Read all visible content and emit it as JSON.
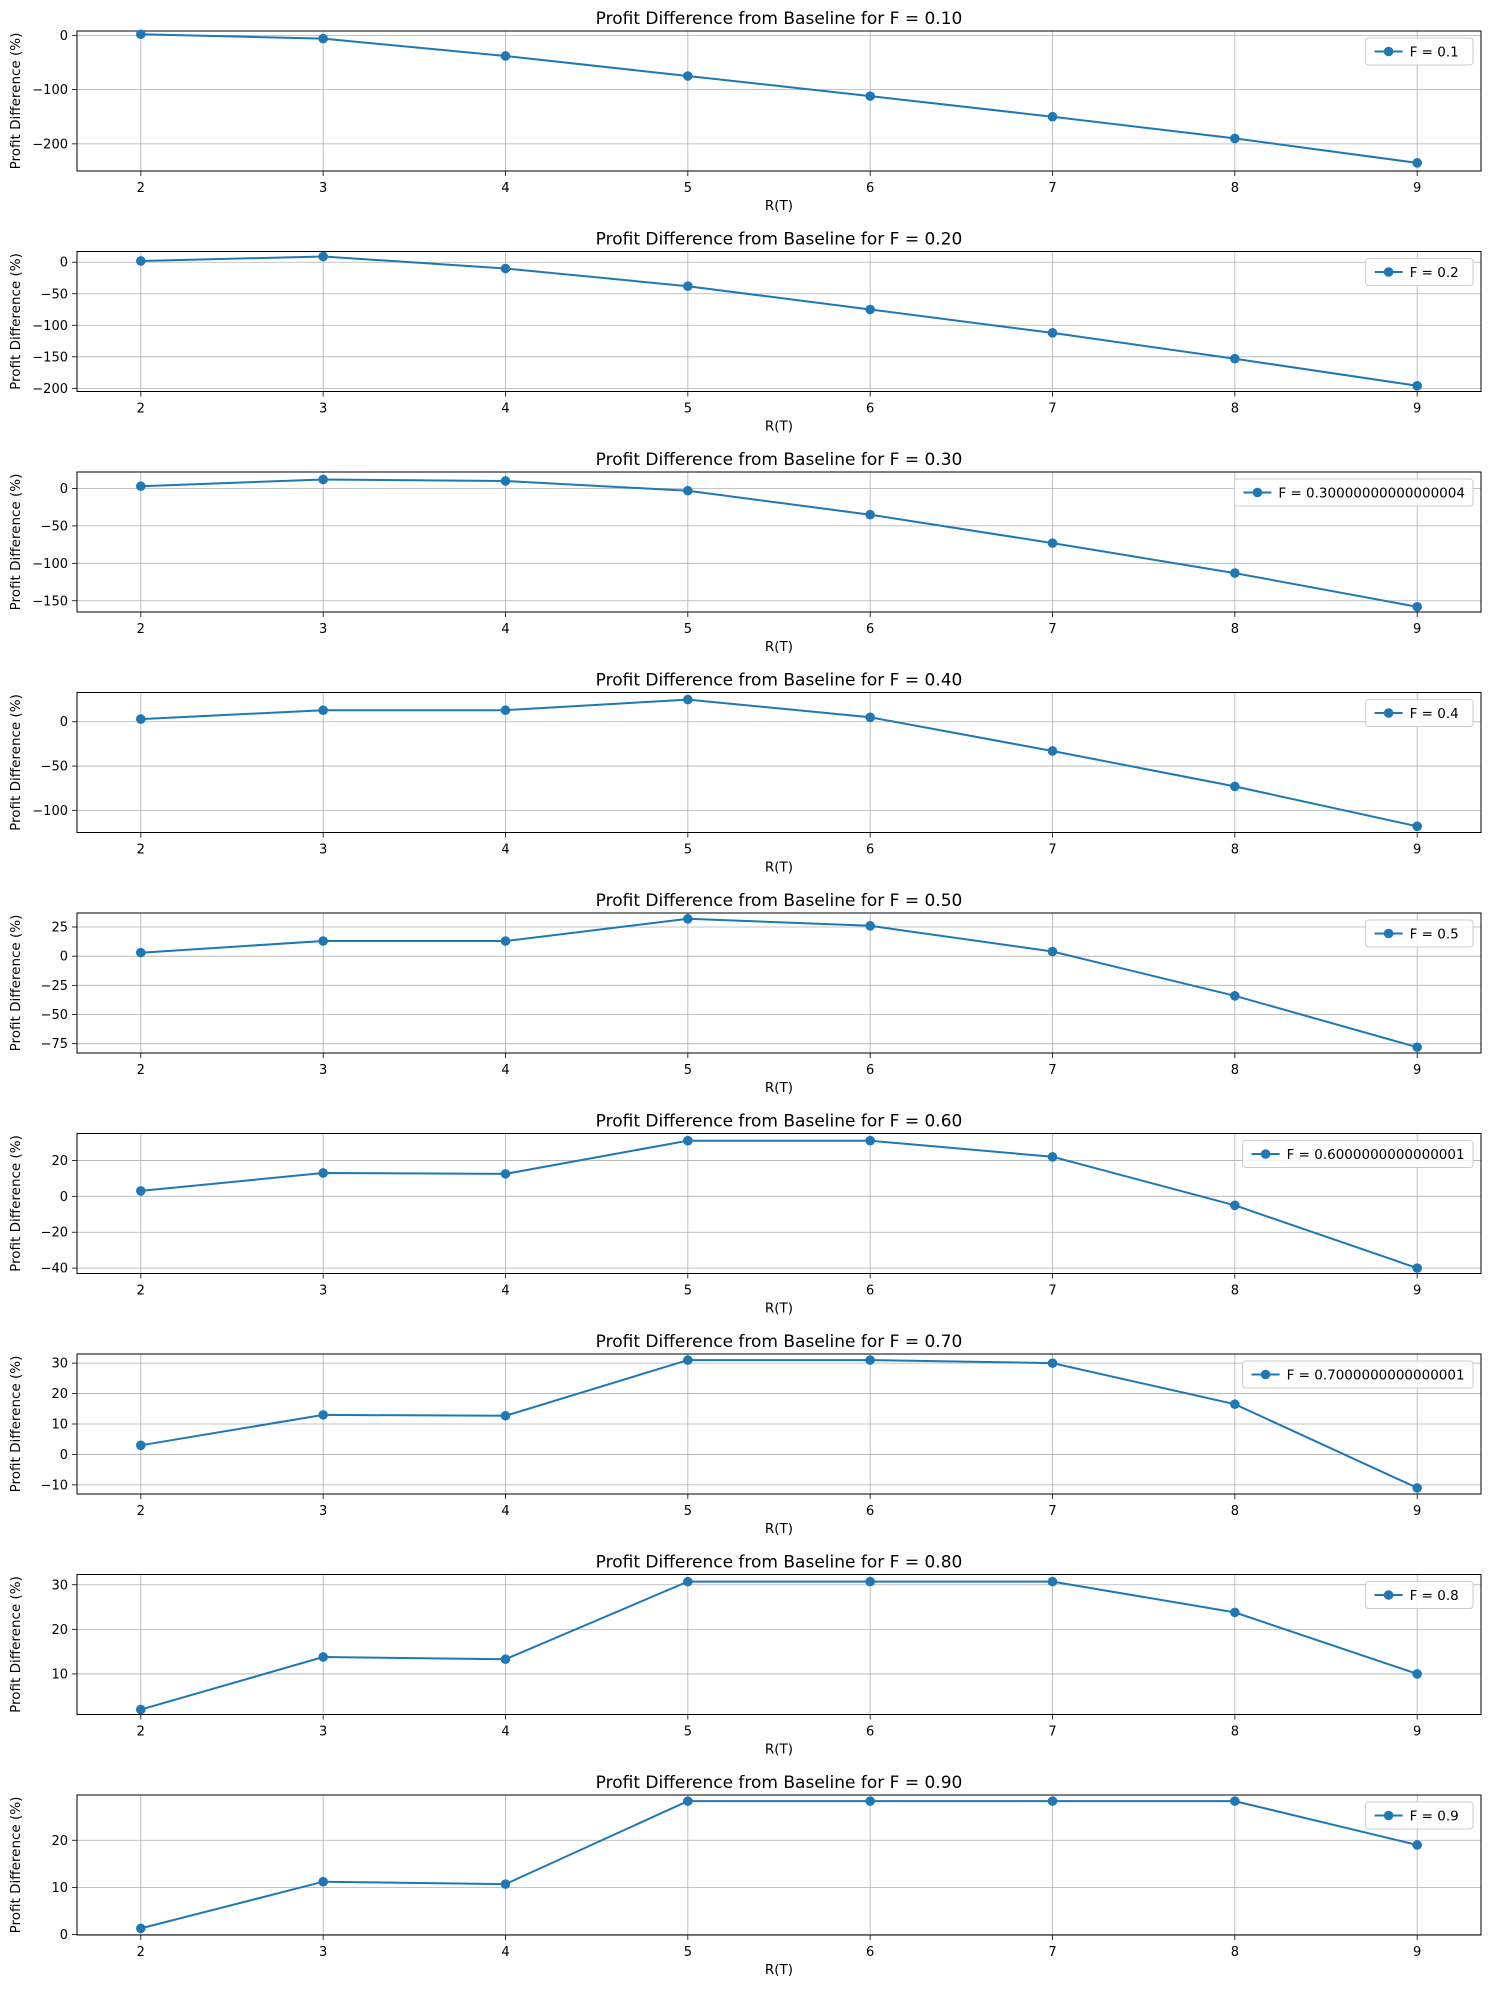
{
  "chart_data": [
    {
      "type": "line",
      "title": "Profit Difference from Baseline for F = 0.10",
      "xlabel": "R(T)",
      "ylabel": "Profit Difference (%)",
      "x": [
        2,
        3,
        4,
        5,
        6,
        7,
        8,
        9
      ],
      "xticks": [
        "2",
        "3",
        "4",
        "5",
        "6",
        "7",
        "8",
        "9"
      ],
      "ylim": [
        -250,
        8
      ],
      "yticks": [
        0,
        -100,
        -200
      ],
      "ytick_labels": [
        "0",
        "−100",
        "−200"
      ],
      "grid": true,
      "legend_position": "upper right",
      "series": [
        {
          "name": "F = 0.1",
          "color": "#1f77b4",
          "values": [
            2,
            -6,
            -38,
            -75,
            -112,
            -150,
            -190,
            -235
          ]
        }
      ]
    },
    {
      "type": "line",
      "title": "Profit Difference from Baseline for F = 0.20",
      "xlabel": "R(T)",
      "ylabel": "Profit Difference (%)",
      "x": [
        2,
        3,
        4,
        5,
        6,
        7,
        8,
        9
      ],
      "xticks": [
        "2",
        "3",
        "4",
        "5",
        "6",
        "7",
        "8",
        "9"
      ],
      "ylim": [
        -205,
        17
      ],
      "yticks": [
        0,
        -50,
        -100,
        -150,
        -200
      ],
      "ytick_labels": [
        "0",
        "−50",
        "−100",
        "−150",
        "−200"
      ],
      "grid": true,
      "legend_position": "upper right",
      "series": [
        {
          "name": "F = 0.2",
          "color": "#1f77b4",
          "values": [
            2,
            9,
            -10,
            -38,
            -75,
            -112,
            -153,
            -196
          ]
        }
      ]
    },
    {
      "type": "line",
      "title": "Profit Difference from Baseline for F = 0.30",
      "xlabel": "R(T)",
      "ylabel": "Profit Difference (%)",
      "x": [
        2,
        3,
        4,
        5,
        6,
        7,
        8,
        9
      ],
      "xticks": [
        "2",
        "3",
        "4",
        "5",
        "6",
        "7",
        "8",
        "9"
      ],
      "ylim": [
        -165,
        22
      ],
      "yticks": [
        0,
        -50,
        -100,
        -150
      ],
      "ytick_labels": [
        "0",
        "−50",
        "−100",
        "−150"
      ],
      "grid": true,
      "legend_position": "upper right",
      "series": [
        {
          "name": "F = 0.30000000000000004",
          "color": "#1f77b4",
          "values": [
            3,
            12,
            10,
            -3,
            -35,
            -73,
            -113,
            -158
          ]
        }
      ]
    },
    {
      "type": "line",
      "title": "Profit Difference from Baseline for F = 0.40",
      "xlabel": "R(T)",
      "ylabel": "Profit Difference (%)",
      "x": [
        2,
        3,
        4,
        5,
        6,
        7,
        8,
        9
      ],
      "xticks": [
        "2",
        "3",
        "4",
        "5",
        "6",
        "7",
        "8",
        "9"
      ],
      "ylim": [
        -125,
        33
      ],
      "yticks": [
        0,
        -50,
        -100
      ],
      "ytick_labels": [
        "0",
        "−50",
        "−100"
      ],
      "grid": true,
      "legend_position": "upper right",
      "series": [
        {
          "name": "F = 0.4",
          "color": "#1f77b4",
          "values": [
            3,
            13,
            13,
            25,
            5,
            -33,
            -73,
            -118
          ]
        }
      ]
    },
    {
      "type": "line",
      "title": "Profit Difference from Baseline for F = 0.50",
      "xlabel": "R(T)",
      "ylabel": "Profit Difference (%)",
      "x": [
        2,
        3,
        4,
        5,
        6,
        7,
        8,
        9
      ],
      "xticks": [
        "2",
        "3",
        "4",
        "5",
        "6",
        "7",
        "8",
        "9"
      ],
      "ylim": [
        -83,
        37
      ],
      "yticks": [
        25,
        0,
        -25,
        -50,
        -75
      ],
      "ytick_labels": [
        "25",
        "0",
        "−25",
        "−50",
        "−75"
      ],
      "grid": true,
      "legend_position": "upper right",
      "series": [
        {
          "name": "F = 0.5",
          "color": "#1f77b4",
          "values": [
            3,
            13,
            13,
            32,
            26,
            4,
            -34,
            -78
          ]
        }
      ]
    },
    {
      "type": "line",
      "title": "Profit Difference from Baseline for F = 0.60",
      "xlabel": "R(T)",
      "ylabel": "Profit Difference (%)",
      "x": [
        2,
        3,
        4,
        5,
        6,
        7,
        8,
        9
      ],
      "xticks": [
        "2",
        "3",
        "4",
        "5",
        "6",
        "7",
        "8",
        "9"
      ],
      "ylim": [
        -43,
        35
      ],
      "yticks": [
        20,
        0,
        -20,
        -40
      ],
      "ytick_labels": [
        "20",
        "0",
        "−20",
        "−40"
      ],
      "grid": true,
      "legend_position": "upper right",
      "series": [
        {
          "name": "F = 0.6000000000000001",
          "color": "#1f77b4",
          "values": [
            3,
            13,
            12.5,
            31,
            31,
            22,
            -5,
            -40
          ]
        }
      ]
    },
    {
      "type": "line",
      "title": "Profit Difference from Baseline for F = 0.70",
      "xlabel": "R(T)",
      "ylabel": "Profit Difference (%)",
      "x": [
        2,
        3,
        4,
        5,
        6,
        7,
        8,
        9
      ],
      "xticks": [
        "2",
        "3",
        "4",
        "5",
        "6",
        "7",
        "8",
        "9"
      ],
      "ylim": [
        -13,
        33
      ],
      "yticks": [
        30,
        20,
        10,
        0,
        -10
      ],
      "ytick_labels": [
        "30",
        "20",
        "10",
        "0",
        "−10"
      ],
      "grid": true,
      "legend_position": "upper right",
      "series": [
        {
          "name": "F = 0.7000000000000001",
          "color": "#1f77b4",
          "values": [
            3,
            13,
            12.7,
            31,
            31,
            30,
            16.5,
            -11
          ]
        }
      ]
    },
    {
      "type": "line",
      "title": "Profit Difference from Baseline for F = 0.80",
      "xlabel": "R(T)",
      "ylabel": "Profit Difference (%)",
      "x": [
        2,
        3,
        4,
        5,
        6,
        7,
        8,
        9
      ],
      "xticks": [
        "2",
        "3",
        "4",
        "5",
        "6",
        "7",
        "8",
        "9"
      ],
      "ylim": [
        0.9,
        32.3
      ],
      "yticks": [
        10,
        20,
        30
      ],
      "ytick_labels": [
        "10",
        "20",
        "30"
      ],
      "grid": true,
      "legend_position": "upper right",
      "series": [
        {
          "name": "F = 0.8",
          "color": "#1f77b4",
          "values": [
            2,
            13.8,
            13.3,
            30.7,
            30.7,
            30.7,
            23.8,
            10
          ]
        }
      ]
    },
    {
      "type": "line",
      "title": "Profit Difference from Baseline for F = 0.90",
      "xlabel": "R(T)",
      "ylabel": "Profit Difference (%)",
      "x": [
        2,
        3,
        4,
        5,
        6,
        7,
        8,
        9
      ],
      "xticks": [
        "2",
        "3",
        "4",
        "5",
        "6",
        "7",
        "8",
        "9"
      ],
      "ylim": [
        -0.1,
        29.6
      ],
      "yticks": [
        0,
        10,
        20
      ],
      "ytick_labels": [
        "0",
        "10",
        "20"
      ],
      "grid": true,
      "legend_position": "upper right",
      "series": [
        {
          "name": "F = 0.9",
          "color": "#1f77b4",
          "values": [
            1.3,
            11.2,
            10.7,
            28.3,
            28.3,
            28.3,
            28.3,
            19
          ]
        }
      ]
    }
  ]
}
